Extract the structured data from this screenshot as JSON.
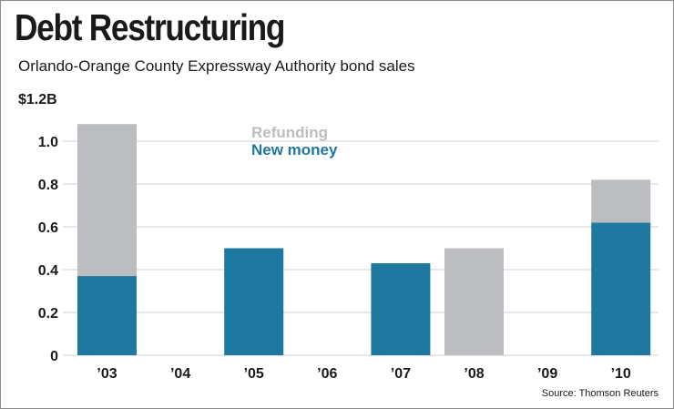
{
  "title": "Debt Restructuring",
  "subtitle": "Orlando-Orange County Expressway Authority bond sales",
  "source": "Source: Thomson Reuters",
  "colors": {
    "refunding": "#bcbdc0",
    "new_money": "#1f78a0",
    "grid": "#cfcfcf",
    "text": "#1a1a1a"
  },
  "chart_data": {
    "type": "bar",
    "stacked": true,
    "categories": [
      "’03",
      "’04",
      "’05",
      "’06",
      "’07",
      "’08",
      "’09",
      "’10"
    ],
    "series": [
      {
        "name": "New money",
        "color": "#1f78a0",
        "values": [
          0.37,
          0,
          0.5,
          0,
          0.43,
          0,
          0,
          0.62
        ]
      },
      {
        "name": "Refunding",
        "color": "#bcbdc0",
        "values": [
          0.71,
          0,
          0,
          0,
          0,
          0.5,
          0,
          0.2
        ]
      }
    ],
    "ylim": [
      0,
      1.2
    ],
    "yticks": [
      0,
      0.2,
      0.4,
      0.6,
      0.8,
      1.0,
      1.2
    ],
    "ytick_labels": [
      "0",
      "0.2",
      "0.4",
      "0.6",
      "0.8",
      "1.0",
      "$1.2B"
    ],
    "grid": true,
    "legend": {
      "placement": "top-center",
      "entries": [
        "Refunding",
        "New money"
      ]
    },
    "xlabel": "",
    "ylabel": ""
  }
}
